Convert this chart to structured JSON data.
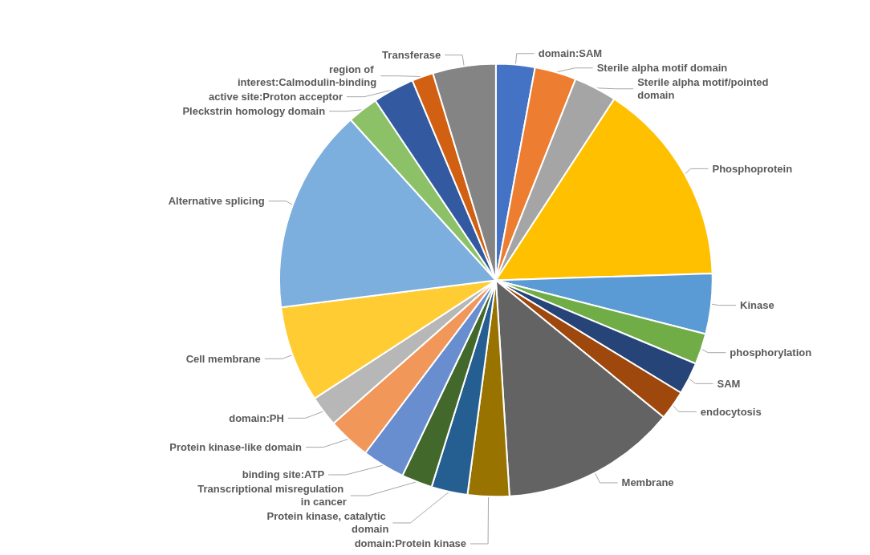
{
  "chart_data": {
    "type": "pie",
    "categories": [
      "domain:SAM",
      "Sterile alpha motif domain",
      "Sterile alpha motif/pointed domain",
      "Phosphoprotein",
      "Kinase",
      "phosphorylation",
      "SAM",
      "endocytosis",
      "Membrane",
      "domain:Protein kinase",
      "Protein kinase, catalytic domain",
      "Transcriptional misregulation in cancer",
      "binding site:ATP",
      "Protein kinase-like domain",
      "domain:PH",
      "Cell membrane",
      "Alternative splicing",
      "Pleckstrin homology domain",
      "active site:Proton acceptor",
      "region of interest:Calmodulin-binding",
      "Transferase"
    ],
    "values": [
      2.9,
      3.1,
      3.2,
      15.3,
      4.5,
      2.3,
      2.4,
      2.2,
      13.1,
      3.1,
      2.7,
      2.3,
      3.2,
      3.2,
      2.3,
      7.2,
      15.3,
      2.3,
      3.1,
      1.6,
      4.7
    ],
    "colors": [
      "#4472c4",
      "#ed7d31",
      "#a5a5a5",
      "#ffc000",
      "#5b9bd5",
      "#70ad47",
      "#264478",
      "#9e480e",
      "#636363",
      "#997300",
      "#255e91",
      "#43682b",
      "#698ed0",
      "#f1975a",
      "#b7b7b7",
      "#ffcd33",
      "#7cafdd",
      "#8cc168",
      "#335aa1",
      "#d26012",
      "#848484"
    ]
  }
}
